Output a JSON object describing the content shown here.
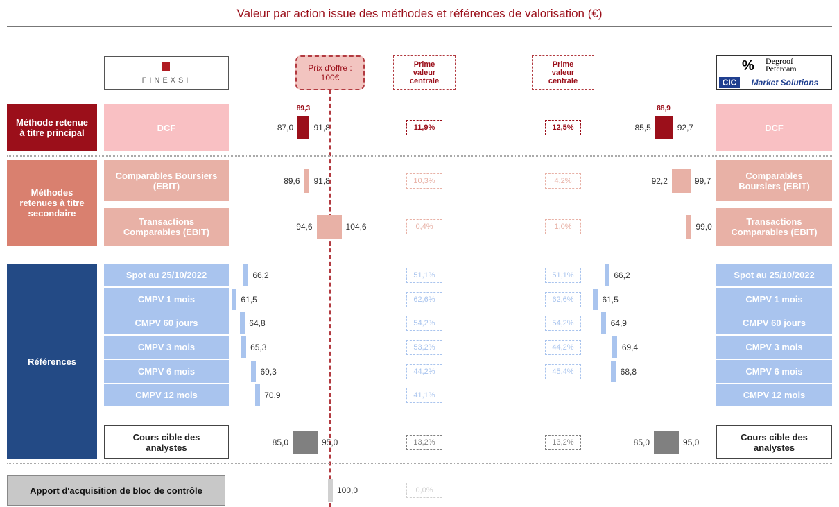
{
  "title": "Valeur par action issue des méthodes et références de valorisation (€)",
  "header": {
    "finexsi": "FINEXSI",
    "offer_label": "Prix d'offre : 100€",
    "premium_left": "Prime valeur centrale",
    "premium_right": "Prime valeur centrale",
    "degroof": "Degroof Petercam",
    "cic": "CIC",
    "market": "Market Solutions"
  },
  "chart_data": {
    "type": "range-bar",
    "offer_price": 100,
    "groups": [
      {
        "label": "Méthode retenue à titre principal",
        "color": "#9b0f1a",
        "rows": [
          {
            "label": "DCF",
            "color": "#9b0f1a",
            "label_bg": "#f9c0c3",
            "left": {
              "values": [
                87.0,
                91.8
              ],
              "value_labels": [
                "87,0",
                "91,8"
              ],
              "central": 89.3,
              "central_label": "89,3",
              "premium": 11.9,
              "premium_label": "11,9%"
            },
            "right": {
              "values": [
                85.5,
                92.7
              ],
              "value_labels": [
                "85,5",
                "92,7"
              ],
              "central": 88.9,
              "central_label": "88,9",
              "premium": 12.5,
              "premium_label": "12,5%"
            }
          }
        ]
      },
      {
        "label": "Méthodes retenues à titre secondaire",
        "color": "#d9806f",
        "rows": [
          {
            "label": "Comparables Boursiers (EBIT)",
            "color": "#e8b1a6",
            "label_bg": "#e8b1a6",
            "left": {
              "values": [
                89.6,
                91.8
              ],
              "value_labels": [
                "89,6",
                "91,8"
              ],
              "premium": 10.3,
              "premium_label": "10,3%"
            },
            "right": {
              "values": [
                92.2,
                99.7
              ],
              "value_labels": [
                "92,2",
                "99,7"
              ],
              "premium": 4.2,
              "premium_label": "4,2%"
            }
          },
          {
            "label": "Transactions Comparables (EBIT)",
            "color": "#e8b1a6",
            "label_bg": "#e8b1a6",
            "left": {
              "values": [
                94.6,
                104.6
              ],
              "value_labels": [
                "94,6",
                "104,6"
              ],
              "premium": 0.4,
              "premium_label": "0,4%"
            },
            "right": {
              "values": [
                99.0
              ],
              "value_labels": [
                "99,0"
              ],
              "premium": 1.0,
              "premium_label": "1,0%"
            }
          }
        ]
      },
      {
        "label": "Références",
        "color": "#234a85",
        "rows": [
          {
            "label": "Spot au 25/10/2022",
            "color": "#a9c4ee",
            "label_bg": "#a9c4ee",
            "left": {
              "values": [
                66.2
              ],
              "value_labels": [
                "66,2"
              ],
              "premium": 51.1,
              "premium_label": "51,1%"
            },
            "right": {
              "values": [
                66.2
              ],
              "value_labels": [
                "66,2"
              ],
              "premium": 51.1,
              "premium_label": "51,1%"
            }
          },
          {
            "label": "CMPV 1 mois",
            "color": "#a9c4ee",
            "label_bg": "#a9c4ee",
            "left": {
              "values": [
                61.5
              ],
              "value_labels": [
                "61,5"
              ],
              "premium": 62.6,
              "premium_label": "62,6%"
            },
            "right": {
              "values": [
                61.5
              ],
              "value_labels": [
                "61,5"
              ],
              "premium": 62.6,
              "premium_label": "62,6%"
            }
          },
          {
            "label": "CMPV 60 jours",
            "color": "#a9c4ee",
            "label_bg": "#a9c4ee",
            "left": {
              "values": [
                64.8
              ],
              "value_labels": [
                "64,8"
              ],
              "premium": 54.2,
              "premium_label": "54,2%"
            },
            "right": {
              "values": [
                64.9
              ],
              "value_labels": [
                "64,9"
              ],
              "premium": 54.2,
              "premium_label": "54,2%"
            }
          },
          {
            "label": "CMPV 3 mois",
            "color": "#a9c4ee",
            "label_bg": "#a9c4ee",
            "left": {
              "values": [
                65.3
              ],
              "value_labels": [
                "65,3"
              ],
              "premium": 53.2,
              "premium_label": "53,2%"
            },
            "right": {
              "values": [
                69.4
              ],
              "value_labels": [
                "69,4"
              ],
              "premium": 44.2,
              "premium_label": "44,2%"
            }
          },
          {
            "label": "CMPV 6 mois",
            "color": "#a9c4ee",
            "label_bg": "#a9c4ee",
            "left": {
              "values": [
                69.3
              ],
              "value_labels": [
                "69,3"
              ],
              "premium": 44.2,
              "premium_label": "44,2%"
            },
            "right": {
              "values": [
                68.8
              ],
              "value_labels": [
                "68,8"
              ],
              "premium": 45.4,
              "premium_label": "45,4%"
            }
          },
          {
            "label": "CMPV 12 mois",
            "color": "#a9c4ee",
            "label_bg": "#a9c4ee",
            "left": {
              "values": [
                70.9
              ],
              "value_labels": [
                "70,9"
              ],
              "premium": 41.1,
              "premium_label": "41,1%"
            }
          },
          {
            "label": "Cours cible des analystes",
            "color": "#808080",
            "label_bg": "#ffffff",
            "left": {
              "values": [
                85.0,
                95.0
              ],
              "value_labels": [
                "85,0",
                "95,0"
              ],
              "premium": 13.2,
              "premium_label": "13,2%"
            },
            "right": {
              "values": [
                85.0,
                95.0
              ],
              "value_labels": [
                "85,0",
                "95,0"
              ],
              "premium": 13.2,
              "premium_label": "13,2%"
            }
          }
        ]
      }
    ],
    "control": {
      "label": "Apport d'acquisition de bloc de contrôle",
      "color": "#d0d0d0",
      "label_bg": "#c8c8c8",
      "left": {
        "values": [
          100.0
        ],
        "value_labels": [
          "100,0"
        ],
        "premium": 0.0,
        "premium_label": "0,0%"
      }
    }
  }
}
